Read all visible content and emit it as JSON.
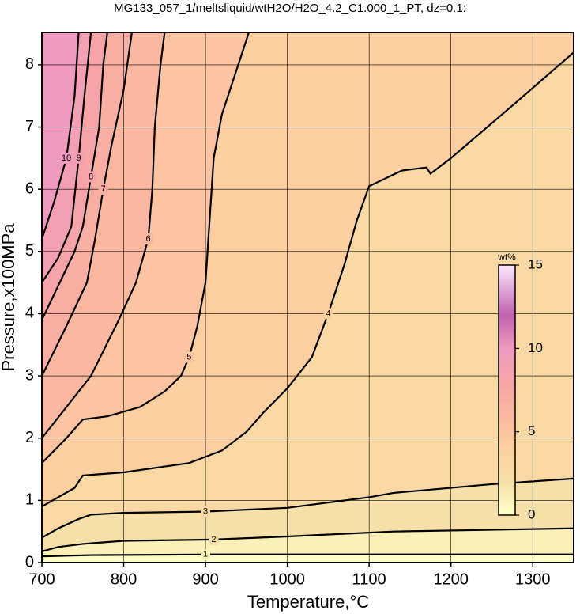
{
  "chart_data": {
    "type": "contour",
    "title": "MG133_057_1/meltsliquid/wtH2O/H2O_4.2_C1.000_1_PT, dz=0.1:",
    "xlabel": "Temperature,°C",
    "ylabel": "Pressure,x100MPa",
    "xlim": [
      700,
      1350
    ],
    "ylim": [
      0,
      8.52
    ],
    "xticks": [
      700,
      800,
      900,
      1000,
      1100,
      1200,
      1300
    ],
    "yticks": [
      0,
      1,
      2,
      3,
      4,
      5,
      6,
      7,
      8
    ],
    "grid": true,
    "colormap": [
      [
        0,
        "#ffffc8"
      ],
      [
        2,
        "#f4e0a8"
      ],
      [
        4,
        "#fdcfa0"
      ],
      [
        6,
        "#fbb8a0"
      ],
      [
        8,
        "#f6a4a8"
      ],
      [
        10,
        "#f09ac0"
      ],
      [
        12,
        "#c060b0"
      ],
      [
        15,
        "#fbe8ff"
      ]
    ],
    "colorbar": {
      "label": "wt%",
      "lim": [
        0,
        15
      ],
      "ticks": [
        0,
        5,
        10,
        15
      ]
    },
    "contours": [
      {
        "level": 1,
        "x": [
          700,
          760,
          900,
          1130,
          1350
        ],
        "y": [
          0.1,
          0.12,
          0.13,
          0.13,
          0.13
        ]
      },
      {
        "level": 2,
        "x": [
          700,
          720,
          750,
          800,
          910,
          1000,
          1130,
          1350
        ],
        "y": [
          0.18,
          0.25,
          0.3,
          0.35,
          0.37,
          0.42,
          0.5,
          0.55
        ]
      },
      {
        "level": 3,
        "x": [
          700,
          720,
          745,
          760,
          800,
          900,
          1000,
          1100,
          1130,
          1250,
          1350
        ],
        "y": [
          0.4,
          0.55,
          0.7,
          0.77,
          0.8,
          0.82,
          0.88,
          1.05,
          1.12,
          1.26,
          1.35
        ]
      },
      {
        "level": 4,
        "x": [
          700,
          740,
          750,
          800,
          880,
          920,
          950,
          970,
          1000,
          1030,
          1050,
          1070,
          1085,
          1100,
          1140,
          1170,
          1175,
          1200,
          1280,
          1350
        ],
        "y": [
          0.9,
          1.2,
          1.4,
          1.45,
          1.6,
          1.8,
          2.1,
          2.4,
          2.8,
          3.3,
          4.0,
          4.8,
          5.5,
          6.05,
          6.3,
          6.35,
          6.25,
          6.5,
          7.4,
          8.2
        ]
      },
      {
        "level": 5,
        "x": [
          700,
          730,
          750,
          780,
          820,
          850,
          870,
          880,
          890,
          900,
          905,
          910,
          920,
          940,
          953
        ],
        "y": [
          1.6,
          2.0,
          2.3,
          2.35,
          2.5,
          2.75,
          3.0,
          3.3,
          3.8,
          4.5,
          5.5,
          6.5,
          7.2,
          8.0,
          8.52
        ]
      },
      {
        "level": 6,
        "x": [
          700,
          730,
          760,
          794,
          815,
          830,
          835,
          838,
          845,
          850
        ],
        "y": [
          2.0,
          2.5,
          3.0,
          3.9,
          4.5,
          5.2,
          6.0,
          7.0,
          8.0,
          8.52
        ]
      },
      {
        "level": 7,
        "x": [
          700,
          730,
          755,
          765,
          775,
          785,
          800,
          810
        ],
        "y": [
          3.0,
          3.8,
          4.5,
          5.2,
          6.0,
          6.7,
          7.6,
          8.52
        ]
      },
      {
        "level": 8,
        "x": [
          700,
          740,
          750,
          760,
          770,
          775,
          780
        ],
        "y": [
          3.9,
          5.0,
          5.4,
          6.2,
          7.0,
          8.0,
          8.52
        ]
      },
      {
        "level": 9,
        "x": [
          700,
          720,
          736,
          745,
          752,
          760
        ],
        "y": [
          4.5,
          4.9,
          5.4,
          6.5,
          7.5,
          8.52
        ]
      },
      {
        "level": 10,
        "x": [
          700,
          715,
          730,
          740,
          745
        ],
        "y": [
          5.2,
          5.8,
          6.5,
          7.5,
          8.52
        ]
      }
    ]
  }
}
